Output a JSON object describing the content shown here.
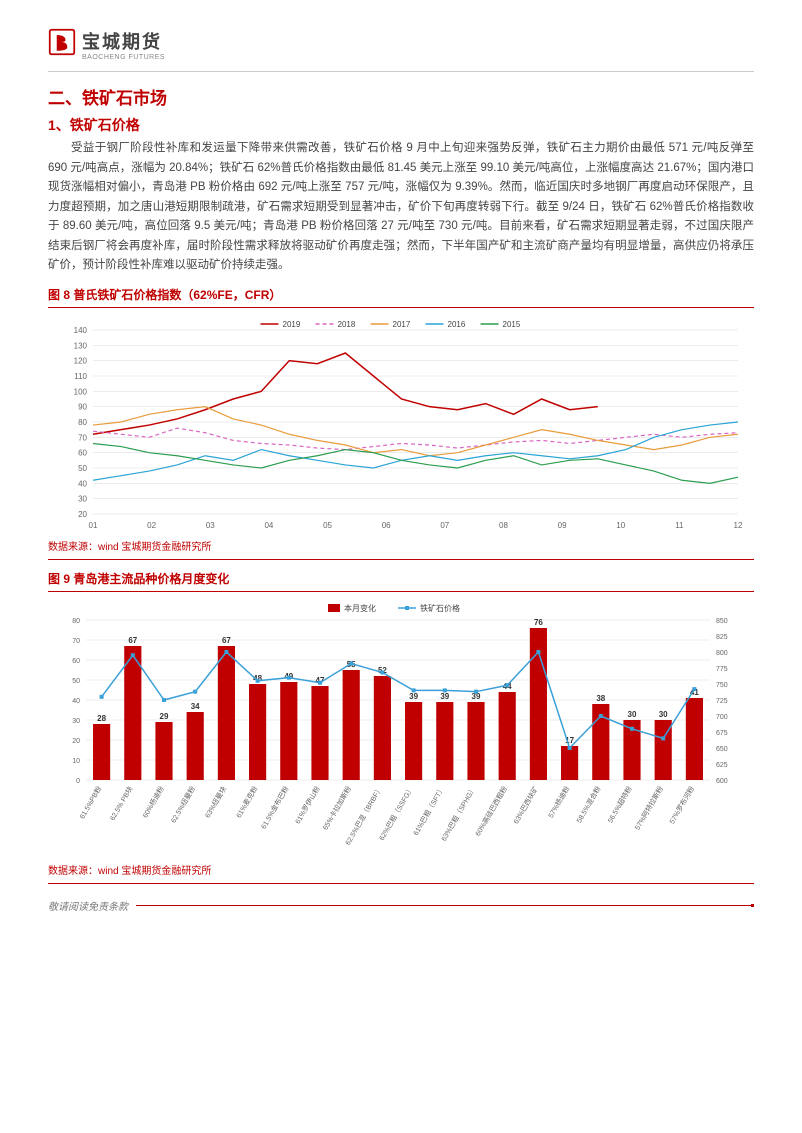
{
  "logo": {
    "cn": "宝城期货",
    "en": "BAOCHENG FUTURES"
  },
  "h2": "二、铁矿石市场",
  "h3_1": "1、铁矿石价格",
  "para": "受益于钢厂阶段性补库和发运量下降带来供需改善，铁矿石价格 9 月中上旬迎来强势反弹，铁矿石主力期价由最低 571 元/吨反弹至 690 元/吨高点，涨幅为 20.84%；铁矿石 62%普氏价格指数由最低 81.45 美元上涨至 99.10 美元/吨高位，上涨幅度高达 21.67%；国内港口现货涨幅相对偏小，青岛港 PB 粉价格由 692 元/吨上涨至 757 元/吨，涨幅仅为 9.39%。然而，临近国庆时多地钢厂再度启动环保限产，且力度超预期，加之唐山港短期限制疏港，矿石需求短期受到显著冲击，矿价下旬再度转弱下行。截至 9/24 日，铁矿石 62%普氏价格指数收于 89.60 美元/吨，高位回落 9.5 美元/吨；青岛港 PB 粉价格回落 27 元/吨至 730 元/吨。目前来看，矿石需求短期显著走弱，不过国庆限产结束后钢厂将会再度补库，届时阶段性需求释放将驱动矿价再度走强；然而，下半年国产矿和主流矿商产量均有明显增量，高供应仍将承压矿价，预计阶段性补库难以驱动矿价持续走强。",
  "fig8_title": "图 8 普氏铁矿石价格指数（62%FE，CFR）",
  "fig9_title": "图 9 青岛港主流品种价格月度变化",
  "src": "数据来源：wind 宝城期货金融研究所",
  "footer": "敬请阅读免责条款",
  "chart8": {
    "type": "line",
    "xlabels": [
      "01",
      "02",
      "03",
      "04",
      "05",
      "06",
      "07",
      "08",
      "09",
      "10",
      "11",
      "12"
    ],
    "ylim": [
      20,
      140
    ],
    "ytick_step": 10,
    "grid_color": "#d9d9d9",
    "bg": "#ffffff",
    "tick_fontsize": 8,
    "legend_fontsize": 8,
    "series": [
      {
        "name": "2019",
        "color": "#c00000",
        "width": 1.5,
        "dash": "",
        "data": [
          72,
          75,
          78,
          82,
          88,
          95,
          100,
          120,
          118,
          125,
          110,
          95,
          90,
          88,
          92,
          85,
          95,
          88,
          90,
          null,
          null,
          null,
          null,
          null
        ]
      },
      {
        "name": "2018",
        "color": "#d966c2",
        "width": 1.2,
        "dash": "4,3",
        "data": [
          74,
          72,
          70,
          76,
          73,
          68,
          66,
          65,
          63,
          62,
          64,
          66,
          65,
          63,
          65,
          67,
          68,
          66,
          68,
          70,
          72,
          70,
          72,
          73
        ]
      },
      {
        "name": "2017",
        "color": "#e89c3c",
        "width": 1.2,
        "dash": "",
        "data": [
          78,
          80,
          85,
          88,
          90,
          82,
          78,
          72,
          68,
          65,
          60,
          62,
          58,
          60,
          65,
          70,
          75,
          72,
          68,
          65,
          62,
          65,
          70,
          72
        ]
      },
      {
        "name": "2016",
        "color": "#2aa3d6",
        "width": 1.2,
        "dash": "",
        "data": [
          42,
          45,
          48,
          52,
          58,
          55,
          62,
          58,
          55,
          52,
          50,
          55,
          58,
          55,
          58,
          60,
          58,
          56,
          58,
          62,
          70,
          75,
          78,
          80
        ]
      },
      {
        "name": "2015",
        "color": "#2a9d4f",
        "width": 1.2,
        "dash": "",
        "data": [
          66,
          64,
          60,
          58,
          55,
          52,
          50,
          55,
          58,
          62,
          60,
          55,
          52,
          50,
          55,
          58,
          52,
          55,
          56,
          52,
          48,
          42,
          40,
          44
        ]
      }
    ]
  },
  "chart9": {
    "type": "bar-line",
    "bg": "#ffffff",
    "grid_color": "#d9d9d9",
    "bar_color": "#c00000",
    "line_color": "#3aa0d8",
    "ylim_left": [
      0,
      80
    ],
    "ytick_left": 10,
    "ylim_right": [
      600,
      850
    ],
    "ytick_right": 25,
    "tick_fontsize": 7,
    "legend_fontsize": 8,
    "legend": [
      "本月变化",
      "铁矿石价格"
    ],
    "categories": [
      "61.5%PB粉",
      "62.5% PB块",
      "60%杨迪粉",
      "62.5%纽曼粉",
      "63%纽曼块",
      "61%麦克粉",
      "61.5%金布巴粉",
      "61%罗伊山粉",
      "65%卡拉加斯粉",
      "62.5%巴混（BRBF）",
      "62%巴粗（SSFG）",
      "61%巴粗（SFT）",
      "63%巴粗（SPHG）",
      "60%高硅巴西粗粉",
      "63%巴西块矿",
      "57%杨迪粉",
      "58.5%混合粉",
      "56.5%超特粉",
      "57%阿特拉斯粉",
      "57%罗布河粉"
    ],
    "bars": [
      28,
      67,
      29,
      34,
      67,
      48,
      49,
      47,
      55,
      52,
      39,
      39,
      39,
      44,
      76,
      17,
      38,
      30,
      30,
      41
    ],
    "line": [
      730,
      795,
      725,
      738,
      800,
      755,
      760,
      752,
      782,
      768,
      740,
      740,
      738,
      748,
      800,
      650,
      700,
      680,
      665,
      742
    ]
  }
}
